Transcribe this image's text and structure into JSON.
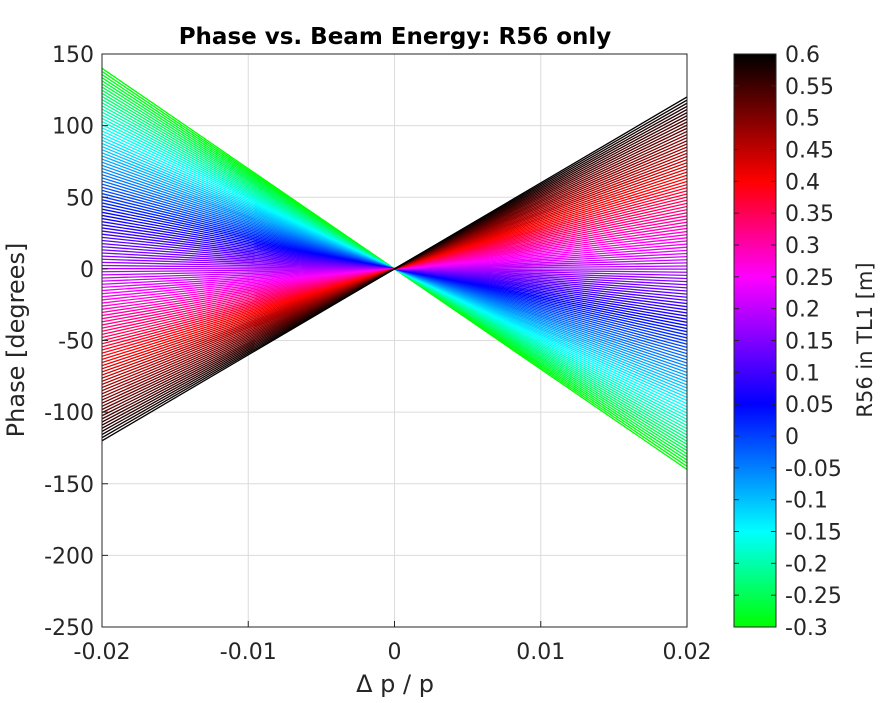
{
  "chart_data": {
    "type": "line",
    "title": "Phase vs. Beam Energy: R56 only",
    "xlabel": "Δ p / p",
    "ylabel": "Phase [degrees]",
    "xlim": [
      -0.02,
      0.02
    ],
    "ylim": [
      -250,
      150
    ],
    "xticks": [
      -0.02,
      -0.01,
      0,
      0.01,
      0.02
    ],
    "xtick_labels": [
      "-0.02",
      "-0.01",
      "0",
      "0.01",
      "0.02"
    ],
    "yticks": [
      -250,
      -200,
      -150,
      -100,
      -50,
      0,
      50,
      100,
      150
    ],
    "ytick_labels": [
      "-250",
      "-200",
      "-150",
      "-100",
      "-50",
      "0",
      "50",
      "100",
      "150"
    ],
    "grid": true,
    "series_description": "Family of straight lines through the origin, one per R56 value; phase slope at dp/p = 0.02 ranges from about -140 deg (R56 = -0.3 m) to about +120 deg (R56 = 0.6 m).",
    "lines": {
      "r56_min": -0.3,
      "r56_max": 0.6,
      "count": 120,
      "phase_at_dp_0_02_for_r56_min": -140,
      "phase_at_dp_0_02_for_r56_max": 120
    },
    "colorbar": {
      "label": "R56 in TL1 [m]",
      "limits": [
        -0.3,
        0.6
      ],
      "ticks": [
        0.6,
        0.55,
        0.5,
        0.45,
        0.4,
        0.35,
        0.3,
        0.25,
        0.2,
        0.15,
        0.1,
        0.05,
        0,
        -0.05,
        -0.1,
        -0.15,
        -0.2,
        -0.25,
        -0.3
      ],
      "tick_labels": [
        "0.6",
        "0.55",
        "0.5",
        "0.45",
        "0.4",
        "0.35",
        "0.3",
        "0.25",
        "0.2",
        "0.15",
        "0.1",
        "0.05",
        "0",
        "-0.05",
        "-0.1",
        "-0.15",
        "-0.2",
        "-0.25",
        "-0.3"
      ],
      "colormap_stops": [
        {
          "value": -0.3,
          "color": "#00ff00"
        },
        {
          "value": -0.15,
          "color": "#00ffff"
        },
        {
          "value": 0.05,
          "color": "#0000ff"
        },
        {
          "value": 0.25,
          "color": "#ff00ff"
        },
        {
          "value": 0.4,
          "color": "#ff0000"
        },
        {
          "value": 0.6,
          "color": "#000000"
        }
      ]
    }
  }
}
